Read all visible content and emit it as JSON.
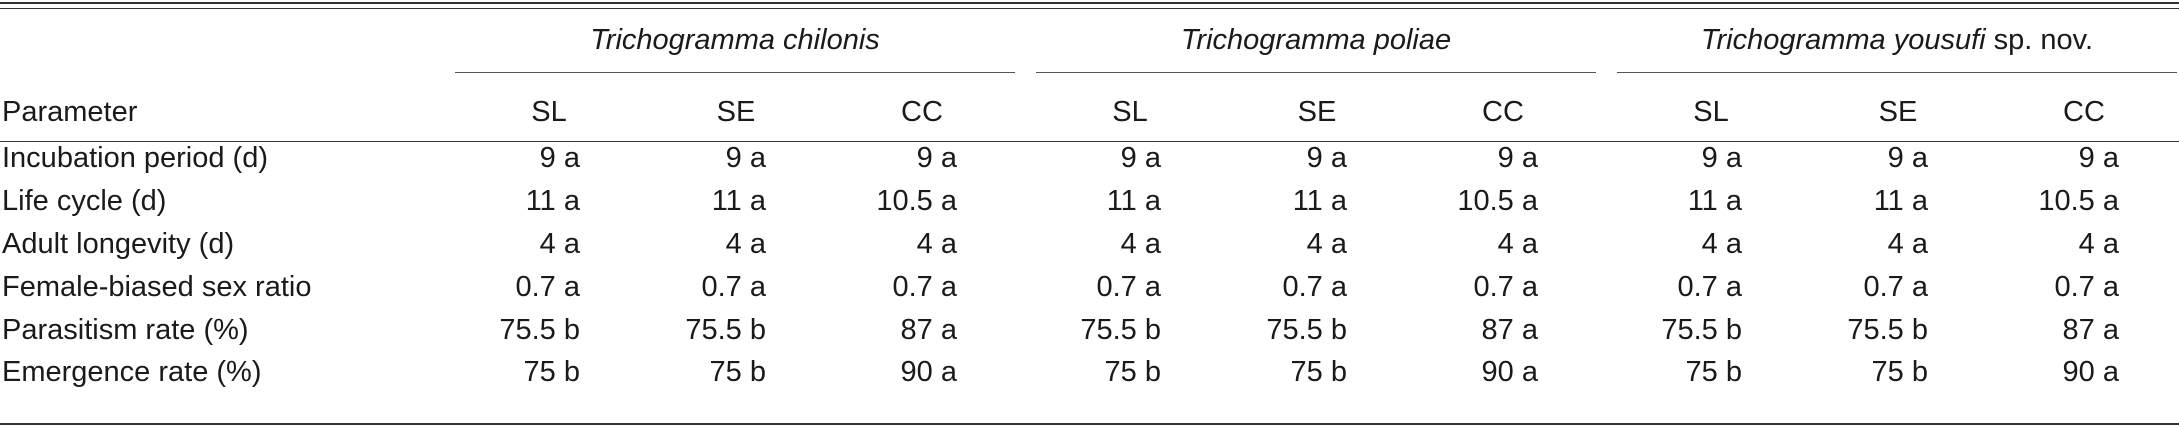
{
  "table": {
    "parameter_header": "Parameter",
    "groups": [
      {
        "species": "Trichogramma chilonis",
        "suffix": "",
        "subheads": [
          "SL",
          "SE",
          "CC"
        ]
      },
      {
        "species": "Trichogramma poliae",
        "suffix": "",
        "subheads": [
          "SL",
          "SE",
          "CC"
        ]
      },
      {
        "species": "Trichogramma yousufi",
        "suffix": " sp. nov.",
        "subheads": [
          "SL",
          "SE",
          "CC"
        ]
      }
    ],
    "rows": [
      {
        "parameter": "Incubation period (d)",
        "values": [
          "9 a",
          "9 a",
          "9 a",
          "9 a",
          "9 a",
          "9 a",
          "9 a",
          "9 a",
          "9 a"
        ]
      },
      {
        "parameter": "Life cycle (d)",
        "values": [
          "11 a",
          "11 a",
          "10.5 a",
          "11 a",
          "11 a",
          "10.5 a",
          "11 a",
          "11 a",
          "10.5 a"
        ]
      },
      {
        "parameter": "Adult longevity (d)",
        "values": [
          "4 a",
          "4 a",
          "4 a",
          "4 a",
          "4 a",
          "4 a",
          "4 a",
          "4 a",
          "4 a"
        ]
      },
      {
        "parameter": "Female-biased sex ratio",
        "values": [
          "0.7 a",
          "0.7 a",
          "0.7 a",
          "0.7 a",
          "0.7 a",
          "0.7 a",
          "0.7 a",
          "0.7 a",
          "0.7 a"
        ]
      },
      {
        "parameter": "Parasitism rate (%)",
        "values": [
          "75.5 b",
          "75.5 b",
          "87 a",
          "75.5 b",
          "75.5 b",
          "87 a",
          "75.5 b",
          "75.5 b",
          "87 a"
        ]
      },
      {
        "parameter": "Emergence rate (%)",
        "values": [
          "75 b",
          "75 b",
          "90 a",
          "75 b",
          "75 b",
          "90 a",
          "75 b",
          "75 b",
          "90 a"
        ]
      }
    ]
  }
}
